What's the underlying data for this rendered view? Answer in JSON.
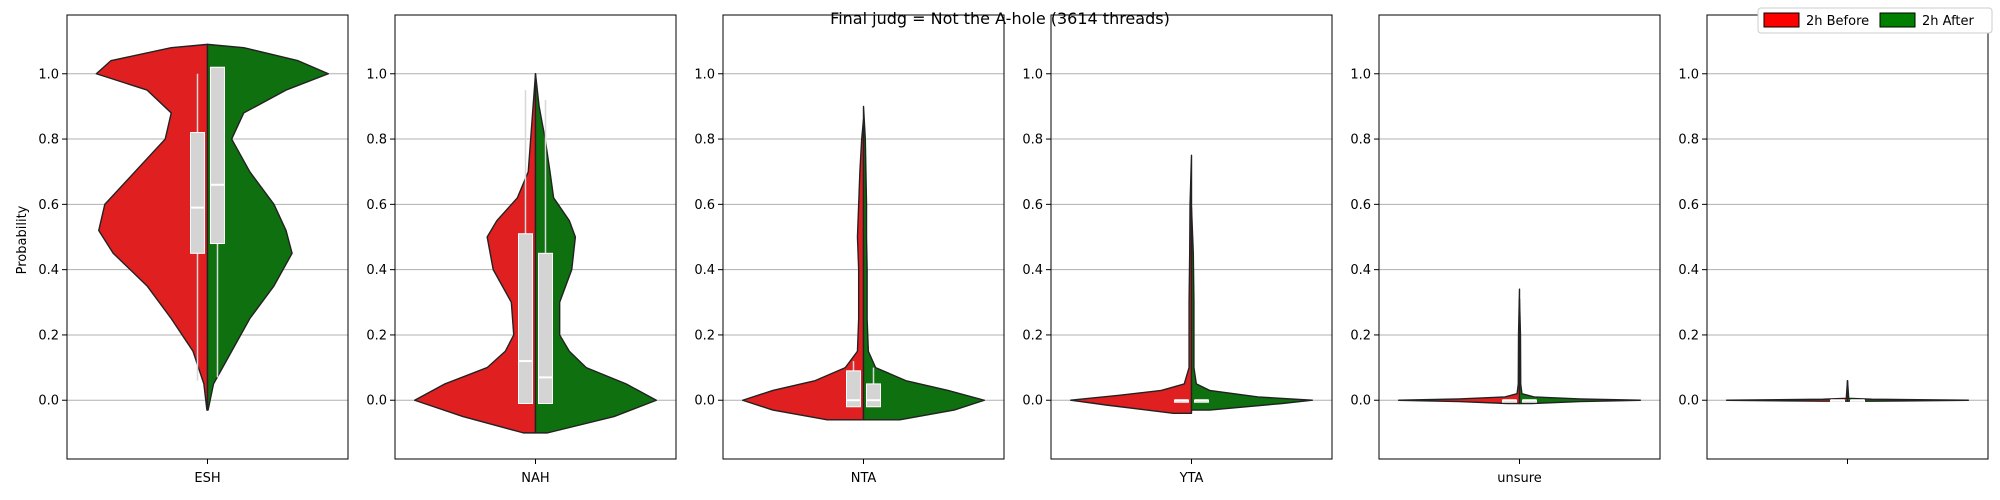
{
  "chart_data": {
    "type": "violin",
    "title": "Final judg = Not the A-hole (3614 threads)",
    "ylabel": "Probability",
    "ylim": [
      -0.18,
      1.18
    ],
    "yticks": [
      0.0,
      0.2,
      0.4,
      0.6,
      0.8,
      1.0
    ],
    "grid": true,
    "legend_position": "top-right",
    "legend": [
      {
        "name": "2h Before",
        "color": "#ff0000"
      },
      {
        "name": "2h After",
        "color": "#008000"
      }
    ],
    "series_colors": {
      "before": "#e02020",
      "after": "#0f7010"
    },
    "panels": [
      {
        "category": "ESH",
        "before": {
          "min": -0.03,
          "max": 1.09,
          "box": [
            0.45,
            0.82
          ],
          "median": 0.59,
          "whisker": [
            0.06,
            1.0
          ],
          "profile": [
            [
              -0.03,
              0.005
            ],
            [
              0.05,
              0.03
            ],
            [
              0.15,
              0.12
            ],
            [
              0.25,
              0.3
            ],
            [
              0.35,
              0.5
            ],
            [
              0.45,
              0.78
            ],
            [
              0.52,
              0.9
            ],
            [
              0.6,
              0.85
            ],
            [
              0.7,
              0.6
            ],
            [
              0.8,
              0.35
            ],
            [
              0.88,
              0.3
            ],
            [
              0.95,
              0.5
            ],
            [
              1.0,
              0.92
            ],
            [
              1.04,
              0.8
            ],
            [
              1.08,
              0.3
            ],
            [
              1.09,
              0.0
            ]
          ]
        },
        "after": {
          "min": -0.03,
          "max": 1.09,
          "box": [
            0.48,
            1.02
          ],
          "median": 0.66,
          "whisker": [
            0.07,
            1.02
          ],
          "profile": [
            [
              -0.03,
              0.005
            ],
            [
              0.05,
              0.05
            ],
            [
              0.15,
              0.2
            ],
            [
              0.25,
              0.35
            ],
            [
              0.35,
              0.55
            ],
            [
              0.45,
              0.7
            ],
            [
              0.52,
              0.65
            ],
            [
              0.6,
              0.55
            ],
            [
              0.7,
              0.35
            ],
            [
              0.8,
              0.2
            ],
            [
              0.88,
              0.3
            ],
            [
              0.95,
              0.65
            ],
            [
              1.0,
              1.0
            ],
            [
              1.04,
              0.75
            ],
            [
              1.08,
              0.3
            ],
            [
              1.09,
              0.0
            ]
          ]
        }
      },
      {
        "category": "NAH",
        "before": {
          "min": -0.1,
          "max": 1.0,
          "box": [
            -0.01,
            0.51
          ],
          "median": 0.12,
          "whisker": [
            -0.01,
            0.95
          ],
          "profile": [
            [
              -0.1,
              0.1
            ],
            [
              -0.05,
              0.6
            ],
            [
              0.0,
              1.0
            ],
            [
              0.05,
              0.75
            ],
            [
              0.1,
              0.4
            ],
            [
              0.15,
              0.25
            ],
            [
              0.2,
              0.18
            ],
            [
              0.3,
              0.2
            ],
            [
              0.4,
              0.35
            ],
            [
              0.5,
              0.4
            ],
            [
              0.55,
              0.32
            ],
            [
              0.62,
              0.15
            ],
            [
              0.7,
              0.06
            ],
            [
              0.8,
              0.04
            ],
            [
              0.9,
              0.02
            ],
            [
              1.0,
              0.0
            ]
          ]
        },
        "after": {
          "min": -0.1,
          "max": 1.0,
          "box": [
            -0.01,
            0.45
          ],
          "median": 0.07,
          "whisker": [
            -0.01,
            0.92
          ],
          "profile": [
            [
              -0.1,
              0.1
            ],
            [
              -0.05,
              0.65
            ],
            [
              0.0,
              1.0
            ],
            [
              0.05,
              0.75
            ],
            [
              0.1,
              0.42
            ],
            [
              0.15,
              0.28
            ],
            [
              0.2,
              0.2
            ],
            [
              0.3,
              0.2
            ],
            [
              0.4,
              0.3
            ],
            [
              0.5,
              0.33
            ],
            [
              0.55,
              0.28
            ],
            [
              0.62,
              0.15
            ],
            [
              0.7,
              0.12
            ],
            [
              0.8,
              0.08
            ],
            [
              0.9,
              0.03
            ],
            [
              1.0,
              0.0
            ]
          ]
        }
      },
      {
        "category": "NTA",
        "before": {
          "min": -0.06,
          "max": 0.86,
          "box": [
            -0.02,
            0.09
          ],
          "median": 0.0,
          "whisker": [
            -0.02,
            0.12
          ],
          "profile": [
            [
              -0.06,
              0.3
            ],
            [
              -0.03,
              0.75
            ],
            [
              0.0,
              1.0
            ],
            [
              0.03,
              0.75
            ],
            [
              0.06,
              0.4
            ],
            [
              0.1,
              0.15
            ],
            [
              0.15,
              0.05
            ],
            [
              0.25,
              0.04
            ],
            [
              0.4,
              0.04
            ],
            [
              0.5,
              0.05
            ],
            [
              0.6,
              0.04
            ],
            [
              0.7,
              0.03
            ],
            [
              0.8,
              0.015
            ],
            [
              0.86,
              0.0
            ]
          ]
        },
        "after": {
          "min": -0.06,
          "max": 0.9,
          "box": [
            -0.02,
            0.05
          ],
          "median": 0.0,
          "whisker": [
            -0.02,
            0.1
          ],
          "profile": [
            [
              -0.06,
              0.3
            ],
            [
              -0.03,
              0.75
            ],
            [
              0.0,
              1.0
            ],
            [
              0.03,
              0.7
            ],
            [
              0.06,
              0.35
            ],
            [
              0.1,
              0.1
            ],
            [
              0.15,
              0.04
            ],
            [
              0.25,
              0.03
            ],
            [
              0.4,
              0.03
            ],
            [
              0.5,
              0.025
            ],
            [
              0.6,
              0.025
            ],
            [
              0.7,
              0.02
            ],
            [
              0.8,
              0.015
            ],
            [
              0.9,
              0.0
            ]
          ]
        }
      },
      {
        "category": "YTA",
        "before": {
          "min": -0.04,
          "max": 0.75,
          "box": [
            0.0,
            0.0
          ],
          "median": 0.0,
          "whisker": [
            0.0,
            0.0
          ],
          "profile": [
            [
              -0.04,
              0.15
            ],
            [
              -0.015,
              0.7
            ],
            [
              0.0,
              1.0
            ],
            [
              0.015,
              0.6
            ],
            [
              0.03,
              0.25
            ],
            [
              0.05,
              0.06
            ],
            [
              0.1,
              0.02
            ],
            [
              0.2,
              0.02
            ],
            [
              0.3,
              0.02
            ],
            [
              0.45,
              0.015
            ],
            [
              0.6,
              0.012
            ],
            [
              0.75,
              0.0
            ]
          ]
        },
        "after": {
          "min": -0.03,
          "max": 0.59,
          "box": [
            0.0,
            0.0
          ],
          "median": 0.0,
          "whisker": [
            0.0,
            0.0
          ],
          "profile": [
            [
              -0.03,
              0.15
            ],
            [
              -0.01,
              0.75
            ],
            [
              0.0,
              1.0
            ],
            [
              0.01,
              0.55
            ],
            [
              0.03,
              0.15
            ],
            [
              0.05,
              0.04
            ],
            [
              0.1,
              0.02
            ],
            [
              0.2,
              0.02
            ],
            [
              0.3,
              0.02
            ],
            [
              0.45,
              0.015
            ],
            [
              0.59,
              0.0
            ]
          ]
        }
      },
      {
        "category": "unsure",
        "before": {
          "min": -0.01,
          "max": 0.34,
          "box": [
            0.0,
            0.0
          ],
          "median": 0.0,
          "whisker": [
            0.0,
            0.0
          ],
          "profile": [
            [
              -0.01,
              0.1
            ],
            [
              -0.004,
              0.5
            ],
            [
              0.0,
              1.0
            ],
            [
              0.004,
              0.5
            ],
            [
              0.01,
              0.12
            ],
            [
              0.02,
              0.02
            ],
            [
              0.05,
              0.01
            ],
            [
              0.2,
              0.008
            ],
            [
              0.34,
              0.0
            ]
          ]
        },
        "after": {
          "min": -0.01,
          "max": 0.31,
          "box": [
            0.0,
            0.0
          ],
          "median": 0.0,
          "whisker": [
            0.0,
            0.0
          ],
          "profile": [
            [
              -0.01,
              0.1
            ],
            [
              -0.004,
              0.5
            ],
            [
              0.0,
              1.0
            ],
            [
              0.004,
              0.5
            ],
            [
              0.01,
              0.12
            ],
            [
              0.02,
              0.02
            ],
            [
              0.05,
              0.01
            ],
            [
              0.2,
              0.008
            ],
            [
              0.31,
              0.0
            ]
          ]
        }
      },
      {
        "category": "",
        "before": {
          "min": -0.003,
          "max": 0.06,
          "box": [
            0.0,
            0.0
          ],
          "median": 0.0,
          "whisker": [
            0.0,
            0.0
          ],
          "profile": [
            [
              -0.003,
              0.2
            ],
            [
              0.0,
              1.0
            ],
            [
              0.003,
              0.2
            ],
            [
              0.006,
              0.01
            ],
            [
              0.06,
              0.0
            ]
          ]
        },
        "after": {
          "min": -0.003,
          "max": 0.06,
          "box": [
            0.0,
            0.0
          ],
          "median": 0.0,
          "whisker": [
            0.0,
            0.0
          ],
          "profile": [
            [
              -0.003,
              0.2
            ],
            [
              0.0,
              1.0
            ],
            [
              0.003,
              0.2
            ],
            [
              0.006,
              0.01
            ],
            [
              0.06,
              0.0
            ]
          ]
        }
      }
    ]
  }
}
